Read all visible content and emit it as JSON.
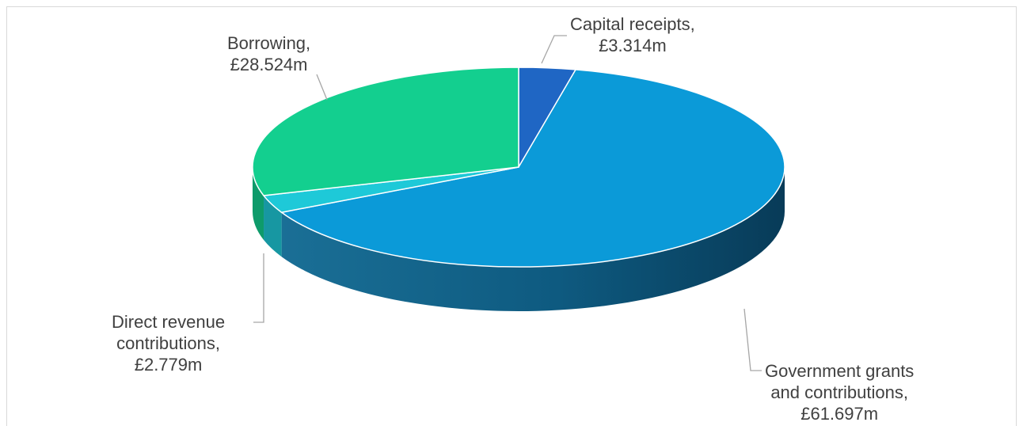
{
  "chart_data": {
    "type": "pie",
    "style": "3d",
    "slices": [
      {
        "label": "Capital receipts,",
        "value_label": "£3.314m",
        "value": 3.314,
        "color": "#1f66c4"
      },
      {
        "label": "Government grants and contributions,",
        "value_label": "£61.697m",
        "value": 61.697,
        "color": "#0b9ad8"
      },
      {
        "label": "Direct revenue contributions,",
        "value_label": "£2.779m",
        "value": 2.779,
        "color": "#1ec9d8"
      },
      {
        "label": "Borrowing,",
        "value_label": "£28.524m",
        "value": 28.524,
        "color": "#13cf8f"
      }
    ]
  },
  "labels": {
    "capital_l1": "Capital receipts,",
    "capital_l2": "£3.314m",
    "gov_l1": "Government grants",
    "gov_l2": "and contributions,",
    "gov_l3": "£61.697m",
    "direct_l1": "Direct revenue",
    "direct_l2": "contributions,",
    "direct_l3": "£2.779m",
    "borrow_l1": "Borrowing,",
    "borrow_l2": "£28.524m"
  }
}
